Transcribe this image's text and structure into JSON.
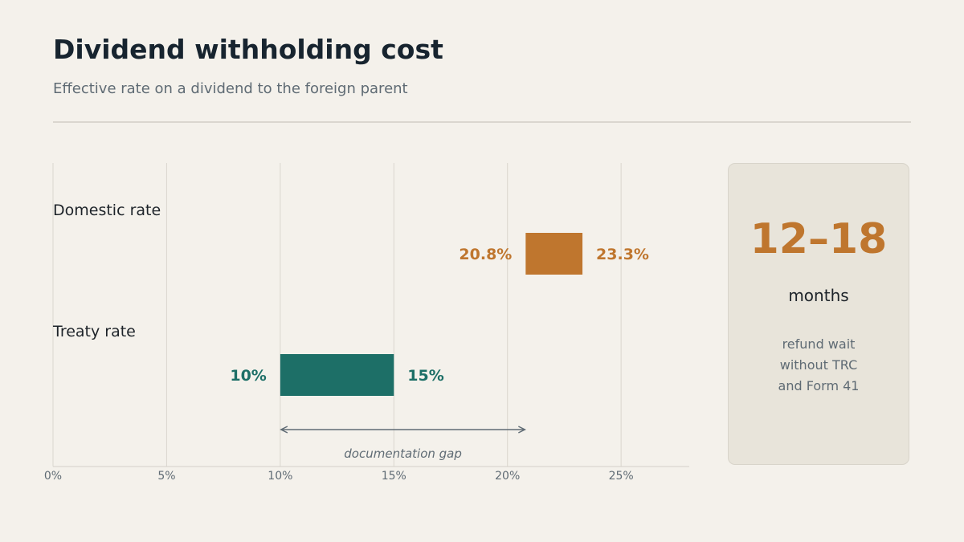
{
  "header": {
    "title": "Dividend withholding cost",
    "subtitle": "Effective rate on a dividend to the foreign parent"
  },
  "chart_data": {
    "type": "bar",
    "orientation": "horizontal-range",
    "xlim": [
      0,
      28
    ],
    "x_ticks": [
      0,
      5,
      10,
      15,
      20,
      25
    ],
    "x_tick_labels": [
      "0%",
      "5%",
      "10%",
      "15%",
      "20%",
      "25%"
    ],
    "grid": true,
    "series": [
      {
        "category": "Domestic rate",
        "low": 20.8,
        "high": 23.3,
        "low_label": "20.8%",
        "high_label": "23.3%",
        "color": "#bf762e"
      },
      {
        "category": "Treaty rate",
        "low": 10,
        "high": 15,
        "low_label": "10%",
        "high_label": "15%",
        "color": "#1d6f67"
      }
    ],
    "annotation": {
      "text": "documentation gap",
      "from": 10,
      "to": 20.8,
      "color": "#5f6b74"
    }
  },
  "card": {
    "value": "12–18",
    "unit": "months",
    "desc_lines": [
      "refund wait",
      "without TRC",
      "and Form 41"
    ]
  }
}
